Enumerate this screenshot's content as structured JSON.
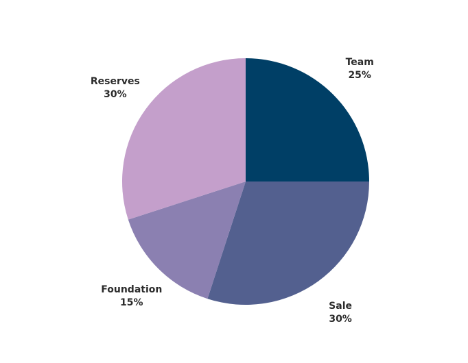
{
  "chart_data": {
    "type": "pie",
    "title": "",
    "start_angle_deg": 0,
    "direction": "clockwise",
    "slices": [
      {
        "label": "Team",
        "percent_label": "25%",
        "value": 25,
        "color": "#003f66"
      },
      {
        "label": "Sale",
        "percent_label": "30%",
        "value": 30,
        "color": "#53608f"
      },
      {
        "label": "Foundation",
        "percent_label": "15%",
        "value": 15,
        "color": "#8b80b1"
      },
      {
        "label": "Reserves",
        "percent_label": "30%",
        "value": 30,
        "color": "#c49fcb"
      }
    ]
  }
}
